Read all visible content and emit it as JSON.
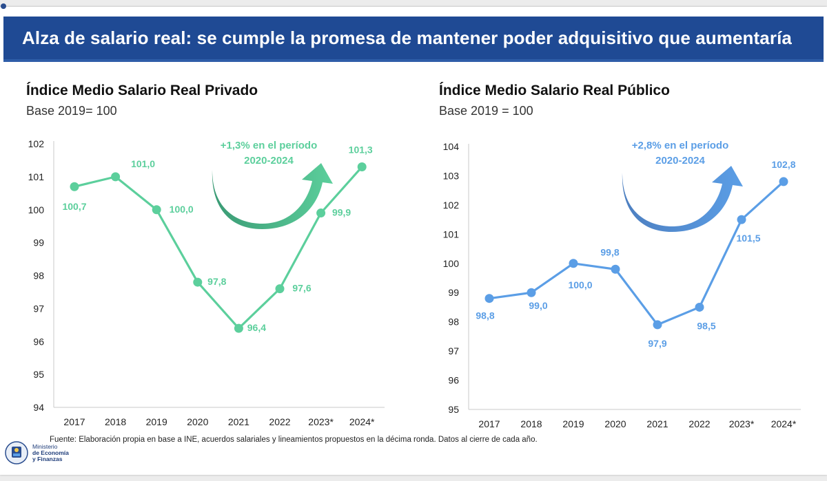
{
  "banner": {
    "title": "Alza de salario real: se cumple la promesa de mantener poder adquisitivo que aumentaría"
  },
  "colors": {
    "banner": "#1f4a94",
    "private_series": "#5ccf9c",
    "private_arrow": "#3a9a74",
    "public_series": "#5b9ee6",
    "public_arrow": "#4d7fc0"
  },
  "chart_data": [
    {
      "type": "line",
      "title": "Índice Medio Salario Real Privado",
      "subtitle": "Base 2019= 100",
      "categories": [
        "2017",
        "2018",
        "2019",
        "2020",
        "2021",
        "2022",
        "2023*",
        "2024*"
      ],
      "series": [
        {
          "values": [
            100.7,
            101.0,
            100.0,
            97.8,
            96.4,
            97.6,
            99.9,
            101.3
          ]
        }
      ],
      "data_labels": [
        "100,7",
        "101,0",
        "100,0",
        "97,8",
        "96,4",
        "97,6",
        "99,9",
        "101,3"
      ],
      "ylim": [
        94,
        102
      ],
      "yticks": [
        "94",
        "95",
        "96",
        "97",
        "98",
        "99",
        "100",
        "101",
        "102"
      ],
      "annotation": [
        "+1,3% en el período",
        "2020-2024"
      ],
      "grid": false,
      "legend": "none"
    },
    {
      "type": "line",
      "title": "Índice Medio Salario Real Público",
      "subtitle": "Base 2019 = 100",
      "categories": [
        "2017",
        "2018",
        "2019",
        "2020",
        "2021",
        "2022",
        "2023*",
        "2024*"
      ],
      "series": [
        {
          "values": [
            98.8,
            99.0,
            100.0,
            99.8,
            97.9,
            98.5,
            101.5,
            102.8
          ]
        }
      ],
      "data_labels": [
        "98,8",
        "99,0",
        "100,0",
        "99,8",
        "97,9",
        "98,5",
        "101,5",
        "102,8"
      ],
      "ylim": [
        95,
        104
      ],
      "yticks": [
        "95",
        "96",
        "97",
        "98",
        "99",
        "100",
        "101",
        "102",
        "103",
        "104"
      ],
      "annotation": [
        "+2,8% en el período",
        "2020-2024"
      ],
      "grid": false,
      "legend": "none"
    }
  ],
  "footnote": "Fuente: Elaboración propia en base a INE, acuerdos salariales y lineamientos propuestos en la décima ronda. Datos al cierre de cada año.",
  "ministry": {
    "line1": "Ministerio",
    "line2": "de Economía",
    "line3": "y Finanzas"
  }
}
